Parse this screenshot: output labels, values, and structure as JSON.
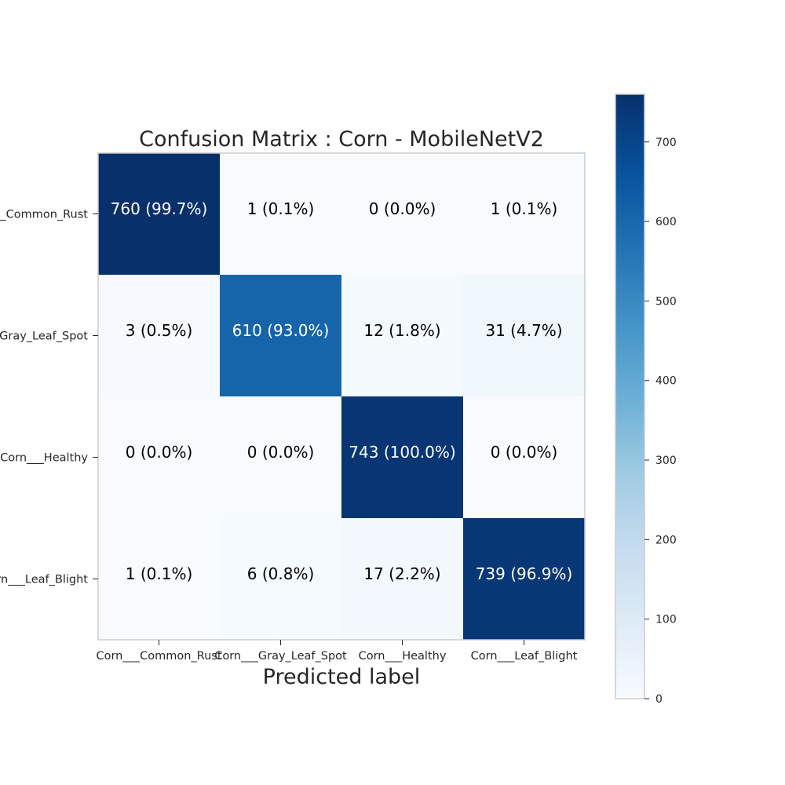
{
  "chart_data": {
    "type": "heatmap",
    "title": "Confusion Matrix : Corn - MobileNetV2",
    "xlabel": "Predicted label",
    "ylabel": "",
    "x_categories": [
      "Corn___Common_Rust",
      "Corn___Gray_Leaf_Spot",
      "Corn___Healthy",
      "Corn___Leaf_Blight"
    ],
    "y_categories": [
      "Corn___Common_Rust",
      "Corn___Gray_Leaf_Spot",
      "Corn___Healthy",
      "Corn___Leaf_Blight"
    ],
    "values": [
      [
        760,
        1,
        0,
        1
      ],
      [
        3,
        610,
        12,
        31
      ],
      [
        0,
        0,
        743,
        0
      ],
      [
        1,
        6,
        17,
        739
      ]
    ],
    "cell_labels": [
      [
        "760 (99.7%)",
        "1 (0.1%)",
        "0 (0.0%)",
        "1 (0.1%)"
      ],
      [
        "3 (0.5%)",
        "610 (93.0%)",
        "12 (1.8%)",
        "31 (4.7%)"
      ],
      [
        "0 (0.0%)",
        "0 (0.0%)",
        "743 (100.0%)",
        "0 (0.0%)"
      ],
      [
        "1 (0.1%)",
        "6 (0.8%)",
        "17 (2.2%)",
        "739 (96.9%)"
      ]
    ],
    "colormap": "Blues",
    "color_range": [
      0,
      760
    ],
    "colorbar_ticks": [
      0,
      100,
      200,
      300,
      400,
      500,
      600,
      700
    ],
    "grid": false,
    "legend": "colorbar-right"
  }
}
